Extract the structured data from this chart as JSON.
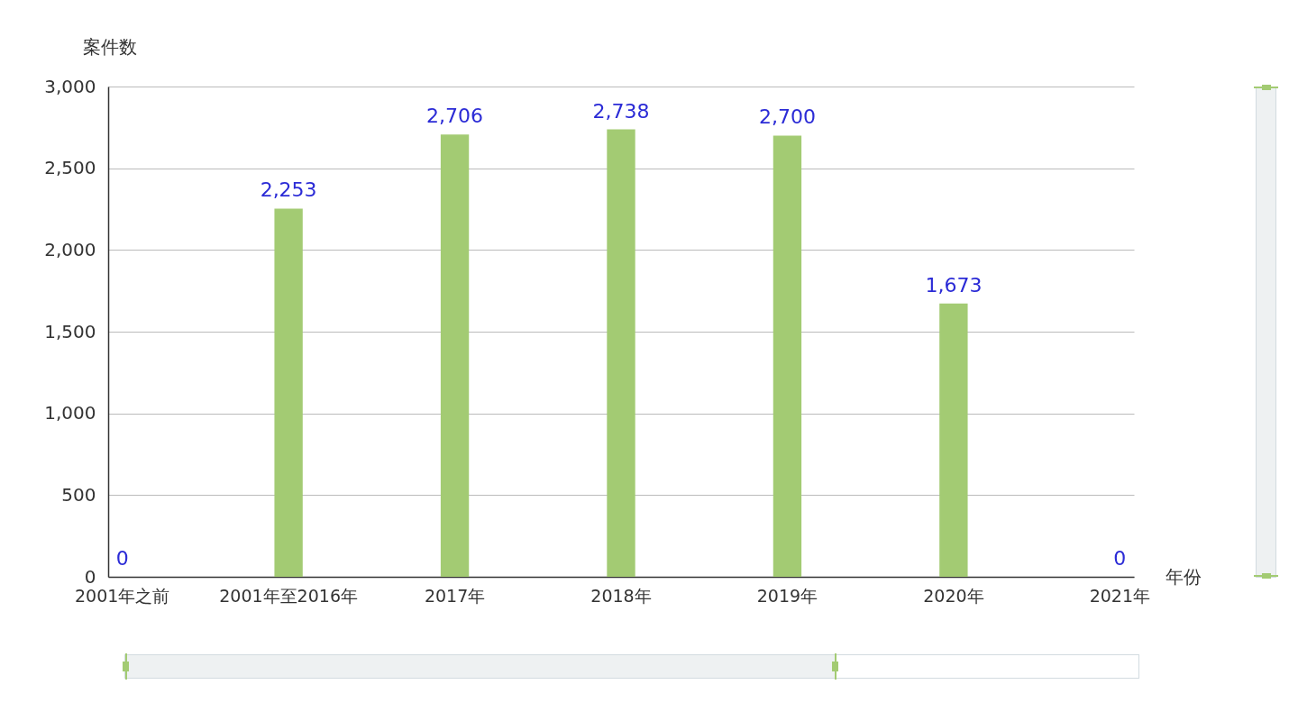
{
  "chart_data": {
    "type": "bar",
    "xlabel": "年份",
    "ylabel": "案件数",
    "categories": [
      "2001年之前",
      "2001年至2016年",
      "2017年",
      "2018年",
      "2019年",
      "2020年",
      "2021年"
    ],
    "values": [
      0,
      2253,
      2706,
      2738,
      2700,
      1673,
      0
    ],
    "value_labels": [
      "0",
      "2,253",
      "2,706",
      "2,738",
      "2,700",
      "1,673",
      "0"
    ],
    "color": "#a3cb73",
    "ylim": [
      0,
      3000
    ],
    "yticks": [
      0,
      {
        "value": 500,
        "label": "500"
      },
      {
        "value": 1000,
        "label": "1,000"
      },
      {
        "value": 1500,
        "label": "1,500"
      },
      {
        "value": 2000,
        "label": "2,000"
      },
      {
        "value": 2500,
        "label": "2,500"
      },
      {
        "value": 3000,
        "label": "3,000"
      }
    ],
    "grid": "y"
  }
}
